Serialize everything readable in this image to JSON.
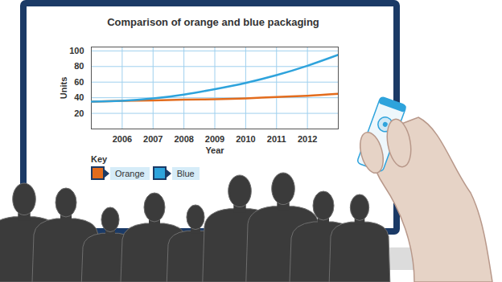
{
  "chart_data": {
    "type": "line",
    "title": "Comparison of orange and blue packaging",
    "x_label": "Year",
    "y_label": "Units",
    "x": [
      2005,
      2006,
      2007,
      2008,
      2009,
      2010,
      2011,
      2012,
      2013
    ],
    "series": [
      {
        "name": "Orange",
        "color": "#e36c1d",
        "values": [
          35,
          36,
          36.5,
          37.5,
          38,
          39,
          41,
          42.5,
          45
        ]
      },
      {
        "name": "Blue",
        "color": "#2ea3dc",
        "values": [
          35,
          36,
          39,
          44,
          51,
          59,
          69,
          81,
          95
        ]
      }
    ],
    "xlim": [
      2005,
      2013
    ],
    "ylim": [
      0,
      105
    ],
    "xticks": [
      2006,
      2007,
      2008,
      2009,
      2010,
      2011,
      2012
    ],
    "yticks": [
      20,
      40,
      60,
      80,
      100
    ],
    "grid": true,
    "legend": "bottom-left",
    "legend_title": "Key"
  }
}
